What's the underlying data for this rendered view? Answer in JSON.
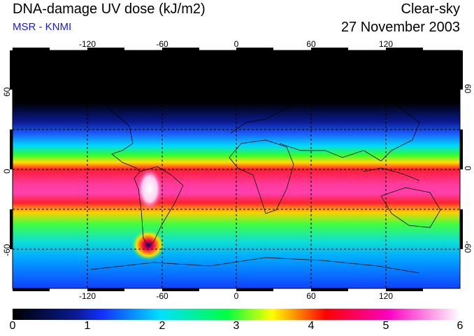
{
  "header": {
    "title": "DNA-damage UV dose (kJ/m2)",
    "source": "MSR - KNMI",
    "condition": "Clear-sky",
    "date": "27 November 2003"
  },
  "map": {
    "projection": "equirectangular",
    "lon_range": [
      -180,
      180
    ],
    "lat_range": [
      -90,
      90
    ],
    "grid": true,
    "x_ticks": [
      "-120",
      "-60",
      "0",
      "60",
      "120"
    ],
    "y_ticks": [
      "60",
      "0",
      "-60"
    ]
  },
  "colorbar": {
    "min": 0,
    "max": 6,
    "labels": [
      "0",
      "1",
      "2",
      "3",
      "4",
      "5",
      "6"
    ],
    "colors": [
      "#000000",
      "#1030ff",
      "#00e0ff",
      "#00ff40",
      "#ffff00",
      "#ff0000",
      "#ff00c0",
      "#ffffff"
    ]
  }
}
